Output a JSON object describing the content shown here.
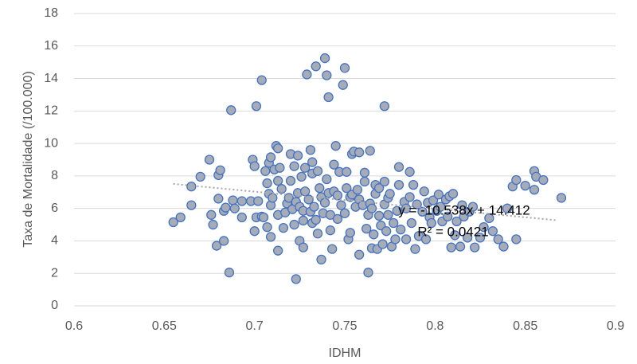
{
  "chart_data": {
    "type": "scatter",
    "x_label": "IDHM",
    "y_label": "Taxa de Mortalidade (/100.000)",
    "x": [
      0.655,
      0.659,
      0.665,
      0.665,
      0.67,
      0.675,
      0.676,
      0.677,
      0.679,
      0.68,
      0.68,
      0.681,
      0.683,
      0.683,
      0.684,
      0.686,
      0.687,
      0.688,
      0.689,
      0.693,
      0.693,
      0.698,
      0.699,
      0.7,
      0.7,
      0.701,
      0.701,
      0.702,
      0.704,
      0.704,
      0.705,
      0.706,
      0.707,
      0.707,
      0.708,
      0.708,
      0.709,
      0.709,
      0.709,
      0.71,
      0.711,
      0.712,
      0.713,
      0.713,
      0.713,
      0.713,
      0.714,
      0.715,
      0.716,
      0.717,
      0.718,
      0.719,
      0.72,
      0.72,
      0.721,
      0.722,
      0.722,
      0.723,
      0.723,
      0.724,
      0.724,
      0.725,
      0.725,
      0.726,
      0.727,
      0.727,
      0.727,
      0.728,
      0.728,
      0.729,
      0.73,
      0.731,
      0.731,
      0.732,
      0.732,
      0.732,
      0.733,
      0.734,
      0.734,
      0.735,
      0.735,
      0.736,
      0.737,
      0.737,
      0.738,
      0.739,
      0.739,
      0.74,
      0.74,
      0.741,
      0.741,
      0.742,
      0.742,
      0.743,
      0.744,
      0.744,
      0.745,
      0.746,
      0.746,
      0.747,
      0.748,
      0.749,
      0.75,
      0.75,
      0.751,
      0.751,
      0.752,
      0.753,
      0.753,
      0.754,
      0.754,
      0.755,
      0.756,
      0.757,
      0.758,
      0.758,
      0.758,
      0.76,
      0.761,
      0.761,
      0.762,
      0.763,
      0.763,
      0.764,
      0.764,
      0.765,
      0.765,
      0.766,
      0.767,
      0.767,
      0.768,
      0.769,
      0.769,
      0.77,
      0.771,
      0.772,
      0.772,
      0.772,
      0.773,
      0.774,
      0.774,
      0.775,
      0.776,
      0.777,
      0.778,
      0.779,
      0.78,
      0.78,
      0.781,
      0.783,
      0.784,
      0.784,
      0.786,
      0.786,
      0.787,
      0.788,
      0.789,
      0.79,
      0.791,
      0.793,
      0.794,
      0.795,
      0.796,
      0.797,
      0.798,
      0.799,
      0.801,
      0.802,
      0.803,
      0.804,
      0.806,
      0.807,
      0.808,
      0.809,
      0.81,
      0.811,
      0.812,
      0.814,
      0.815,
      0.816,
      0.818,
      0.819,
      0.821,
      0.822,
      0.825,
      0.827,
      0.83,
      0.832,
      0.835,
      0.838,
      0.84,
      0.843,
      0.845,
      0.845,
      0.85,
      0.855,
      0.855,
      0.856,
      0.86,
      0.87
    ],
    "values": [
      5.15,
      5.45,
      6.2,
      7.35,
      7.95,
      9.0,
      5.6,
      5.0,
      3.7,
      6.6,
      8.05,
      8.35,
      4.0,
      5.85,
      6.05,
      2.05,
      12.05,
      6.5,
      6.0,
      6.45,
      5.45,
      6.45,
      9.0,
      4.6,
      8.6,
      12.3,
      5.45,
      6.45,
      13.9,
      5.5,
      5.45,
      8.3,
      7.55,
      4.85,
      8.8,
      6.9,
      4.25,
      9.15,
      6.2,
      6.65,
      8.4,
      9.85,
      9.7,
      3.4,
      5.6,
      7.7,
      8.5,
      7.2,
      4.8,
      5.75,
      6.3,
      6.65,
      9.35,
      7.7,
      5.95,
      5.0,
      8.6,
      6.4,
      1.65,
      9.25,
      6.95,
      4.0,
      6.1,
      7.95,
      5.85,
      3.6,
      5.25,
      8.5,
      7.05,
      14.25,
      6.55,
      5.8,
      9.6,
      5.1,
      8.15,
      8.85,
      6.1,
      5.3,
      14.75,
      4.45,
      8.3,
      7.25,
      6.7,
      2.85,
      5.7,
      6.35,
      15.25,
      14.2,
      7.8,
      12.85,
      6.95,
      5.6,
      4.65,
      3.5,
      8.7,
      7.05,
      9.85,
      5.35,
      6.8,
      8.25,
      6.2,
      13.6,
      14.65,
      5.7,
      7.25,
      8.25,
      4.1,
      6.7,
      4.5,
      9.35,
      6.85,
      9.5,
      6.1,
      7.15,
      3.15,
      6.55,
      9.45,
      6.2,
      8.2,
      7.65,
      4.75,
      5.6,
      2.05,
      6.3,
      9.55,
      3.55,
      6.0,
      4.4,
      6.9,
      7.45,
      3.5,
      5.55,
      7.25,
      4.95,
      3.8,
      12.3,
      7.65,
      6.25,
      4.6,
      5.6,
      6.65,
      6.9,
      3.65,
      5.1,
      4.1,
      5.85,
      8.55,
      7.45,
      4.7,
      6.4,
      4.1,
      6.0,
      6.7,
      8.25,
      5.1,
      7.45,
      3.5,
      6.25,
      4.3,
      5.8,
      7.05,
      4.1,
      6.35,
      5.45,
      5.1,
      6.5,
      5.85,
      6.85,
      6.1,
      5.2,
      6.55,
      5.5,
      6.75,
      3.6,
      6.9,
      4.35,
      5.2,
      3.65,
      6.2,
      5.5,
      4.2,
      5.8,
      6.1,
      3.6,
      4.2,
      4.85,
      5.4,
      4.6,
      4.1,
      3.65,
      6.0,
      7.35,
      4.1,
      7.75,
      7.4,
      7.15,
      8.3,
      7.95,
      7.75,
      6.65
    ],
    "color": "#a5acb8",
    "edgecolor": "#4472c4",
    "trendline": {
      "label": "y = -10.538x + 14.412",
      "r2_label": "R² = 0.0421",
      "slope": -10.538,
      "intercept": 14.412,
      "x": [
        0.655,
        0.868
      ],
      "color": "#a6a6a6"
    },
    "xlim": [
      0.6,
      0.9
    ],
    "xticks": [
      0.6,
      0.65,
      0.7,
      0.75,
      0.8,
      0.85,
      0.9
    ],
    "ylim": [
      0,
      18
    ],
    "yticks": [
      0,
      2,
      4,
      6,
      8,
      10,
      12,
      14,
      16,
      18
    ],
    "grid": true
  }
}
